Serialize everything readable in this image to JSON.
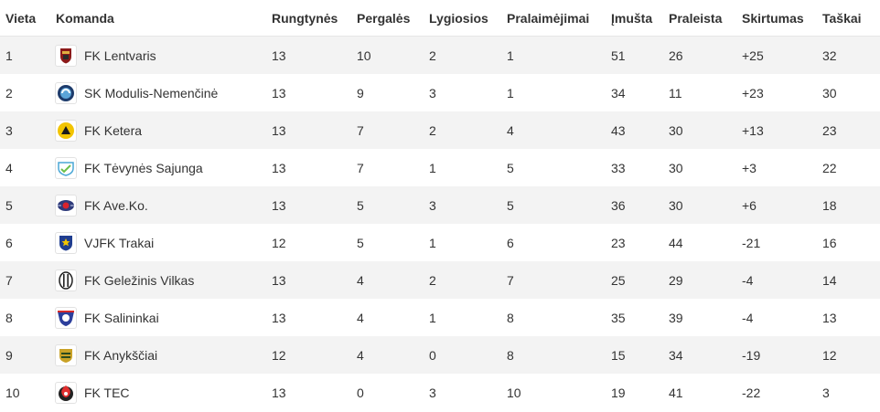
{
  "headers": {
    "position": "Vieta",
    "team": "Komanda",
    "played": "Rungtynės",
    "wins": "Pergalės",
    "draws": "Lygiosios",
    "losses": "Pralaimėjimai",
    "goals_for": "Įmušta",
    "goals_against": "Praleista",
    "goal_diff": "Skirtumas",
    "points": "Taškai"
  },
  "rows": [
    {
      "position": "1",
      "team": "FK Lentvaris",
      "logo": "fk-lentvaris-logo",
      "played": "13",
      "wins": "10",
      "draws": "2",
      "losses": "1",
      "goals_for": "51",
      "goals_against": "26",
      "goal_diff": "+25",
      "points": "32"
    },
    {
      "position": "2",
      "team": "SK Modulis-Nemenčinė",
      "logo": "sk-modulis-nemencine-logo",
      "played": "13",
      "wins": "9",
      "draws": "3",
      "losses": "1",
      "goals_for": "34",
      "goals_against": "11",
      "goal_diff": "+23",
      "points": "30"
    },
    {
      "position": "3",
      "team": "FK Ketera",
      "logo": "fk-ketera-logo",
      "played": "13",
      "wins": "7",
      "draws": "2",
      "losses": "4",
      "goals_for": "43",
      "goals_against": "30",
      "goal_diff": "+13",
      "points": "23"
    },
    {
      "position": "4",
      "team": "FK Tėvynės Sajunga",
      "logo": "fk-tevynes-sajunga-logo",
      "played": "13",
      "wins": "7",
      "draws": "1",
      "losses": "5",
      "goals_for": "33",
      "goals_against": "30",
      "goal_diff": "+3",
      "points": "22"
    },
    {
      "position": "5",
      "team": "FK Ave.Ko.",
      "logo": "fk-aveko-logo",
      "played": "13",
      "wins": "5",
      "draws": "3",
      "losses": "5",
      "goals_for": "36",
      "goals_against": "30",
      "goal_diff": "+6",
      "points": "18"
    },
    {
      "position": "6",
      "team": "VJFK Trakai",
      "logo": "vjfk-trakai-logo",
      "played": "12",
      "wins": "5",
      "draws": "1",
      "losses": "6",
      "goals_for": "23",
      "goals_against": "44",
      "goal_diff": "-21",
      "points": "16"
    },
    {
      "position": "7",
      "team": "FK Geležinis Vilkas",
      "logo": "fk-gelezinis-vilkas-logo",
      "played": "13",
      "wins": "4",
      "draws": "2",
      "losses": "7",
      "goals_for": "25",
      "goals_against": "29",
      "goal_diff": "-4",
      "points": "14"
    },
    {
      "position": "8",
      "team": "FK Salininkai",
      "logo": "fk-salininkai-logo",
      "played": "13",
      "wins": "4",
      "draws": "1",
      "losses": "8",
      "goals_for": "35",
      "goals_against": "39",
      "goal_diff": "-4",
      "points": "13"
    },
    {
      "position": "9",
      "team": "FK Anykščiai",
      "logo": "fk-anyksciai-logo",
      "played": "12",
      "wins": "4",
      "draws": "0",
      "losses": "8",
      "goals_for": "15",
      "goals_against": "34",
      "goal_diff": "-19",
      "points": "12"
    },
    {
      "position": "10",
      "team": "FK TEC",
      "logo": "fk-tec-logo",
      "played": "13",
      "wins": "0",
      "draws": "3",
      "losses": "10",
      "goals_for": "19",
      "goals_against": "41",
      "goal_diff": "-22",
      "points": "3"
    }
  ],
  "colors": {
    "row_shaded": "#f3f3f3",
    "row_plain": "#ffffff",
    "text": "#333333"
  }
}
